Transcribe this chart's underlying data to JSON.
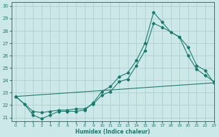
{
  "xlabel": "Humidex (Indice chaleur)",
  "xlim": [
    -0.5,
    23
  ],
  "ylim": [
    20.7,
    30.3
  ],
  "yticks": [
    21,
    22,
    23,
    24,
    25,
    26,
    27,
    28,
    29,
    30
  ],
  "xticks": [
    0,
    1,
    2,
    3,
    4,
    5,
    6,
    7,
    8,
    9,
    10,
    11,
    12,
    13,
    14,
    15,
    16,
    17,
    18,
    19,
    20,
    21,
    22,
    23
  ],
  "bg_color": "#cce8e8",
  "grid_color": "#b0cece",
  "line_color": "#1a7a6e",
  "line1_x": [
    0,
    1,
    2,
    3,
    4,
    5,
    6,
    7,
    8,
    9,
    10,
    11,
    12,
    13,
    14,
    15,
    16,
    17,
    18,
    19,
    20,
    21,
    22,
    23
  ],
  "line1_y": [
    22.7,
    22.1,
    21.2,
    20.9,
    21.2,
    21.5,
    21.5,
    21.5,
    21.6,
    22.2,
    23.1,
    23.5,
    24.3,
    24.6,
    25.6,
    27.0,
    29.5,
    28.7,
    27.9,
    27.5,
    26.7,
    25.2,
    24.8,
    23.8
  ],
  "line2_x": [
    0,
    2,
    3,
    4,
    5,
    6,
    7,
    8,
    9,
    10,
    11,
    12,
    13,
    14,
    15,
    16,
    17,
    19,
    20,
    21,
    22,
    23
  ],
  "line2_y": [
    22.7,
    21.5,
    21.4,
    21.5,
    21.6,
    21.6,
    21.7,
    21.7,
    22.1,
    22.8,
    23.1,
    23.9,
    24.1,
    25.2,
    26.4,
    28.6,
    28.3,
    27.5,
    26.0,
    24.9,
    24.4,
    23.9
  ],
  "line3_x": [
    0,
    23
  ],
  "line3_y": [
    22.7,
    23.8
  ]
}
